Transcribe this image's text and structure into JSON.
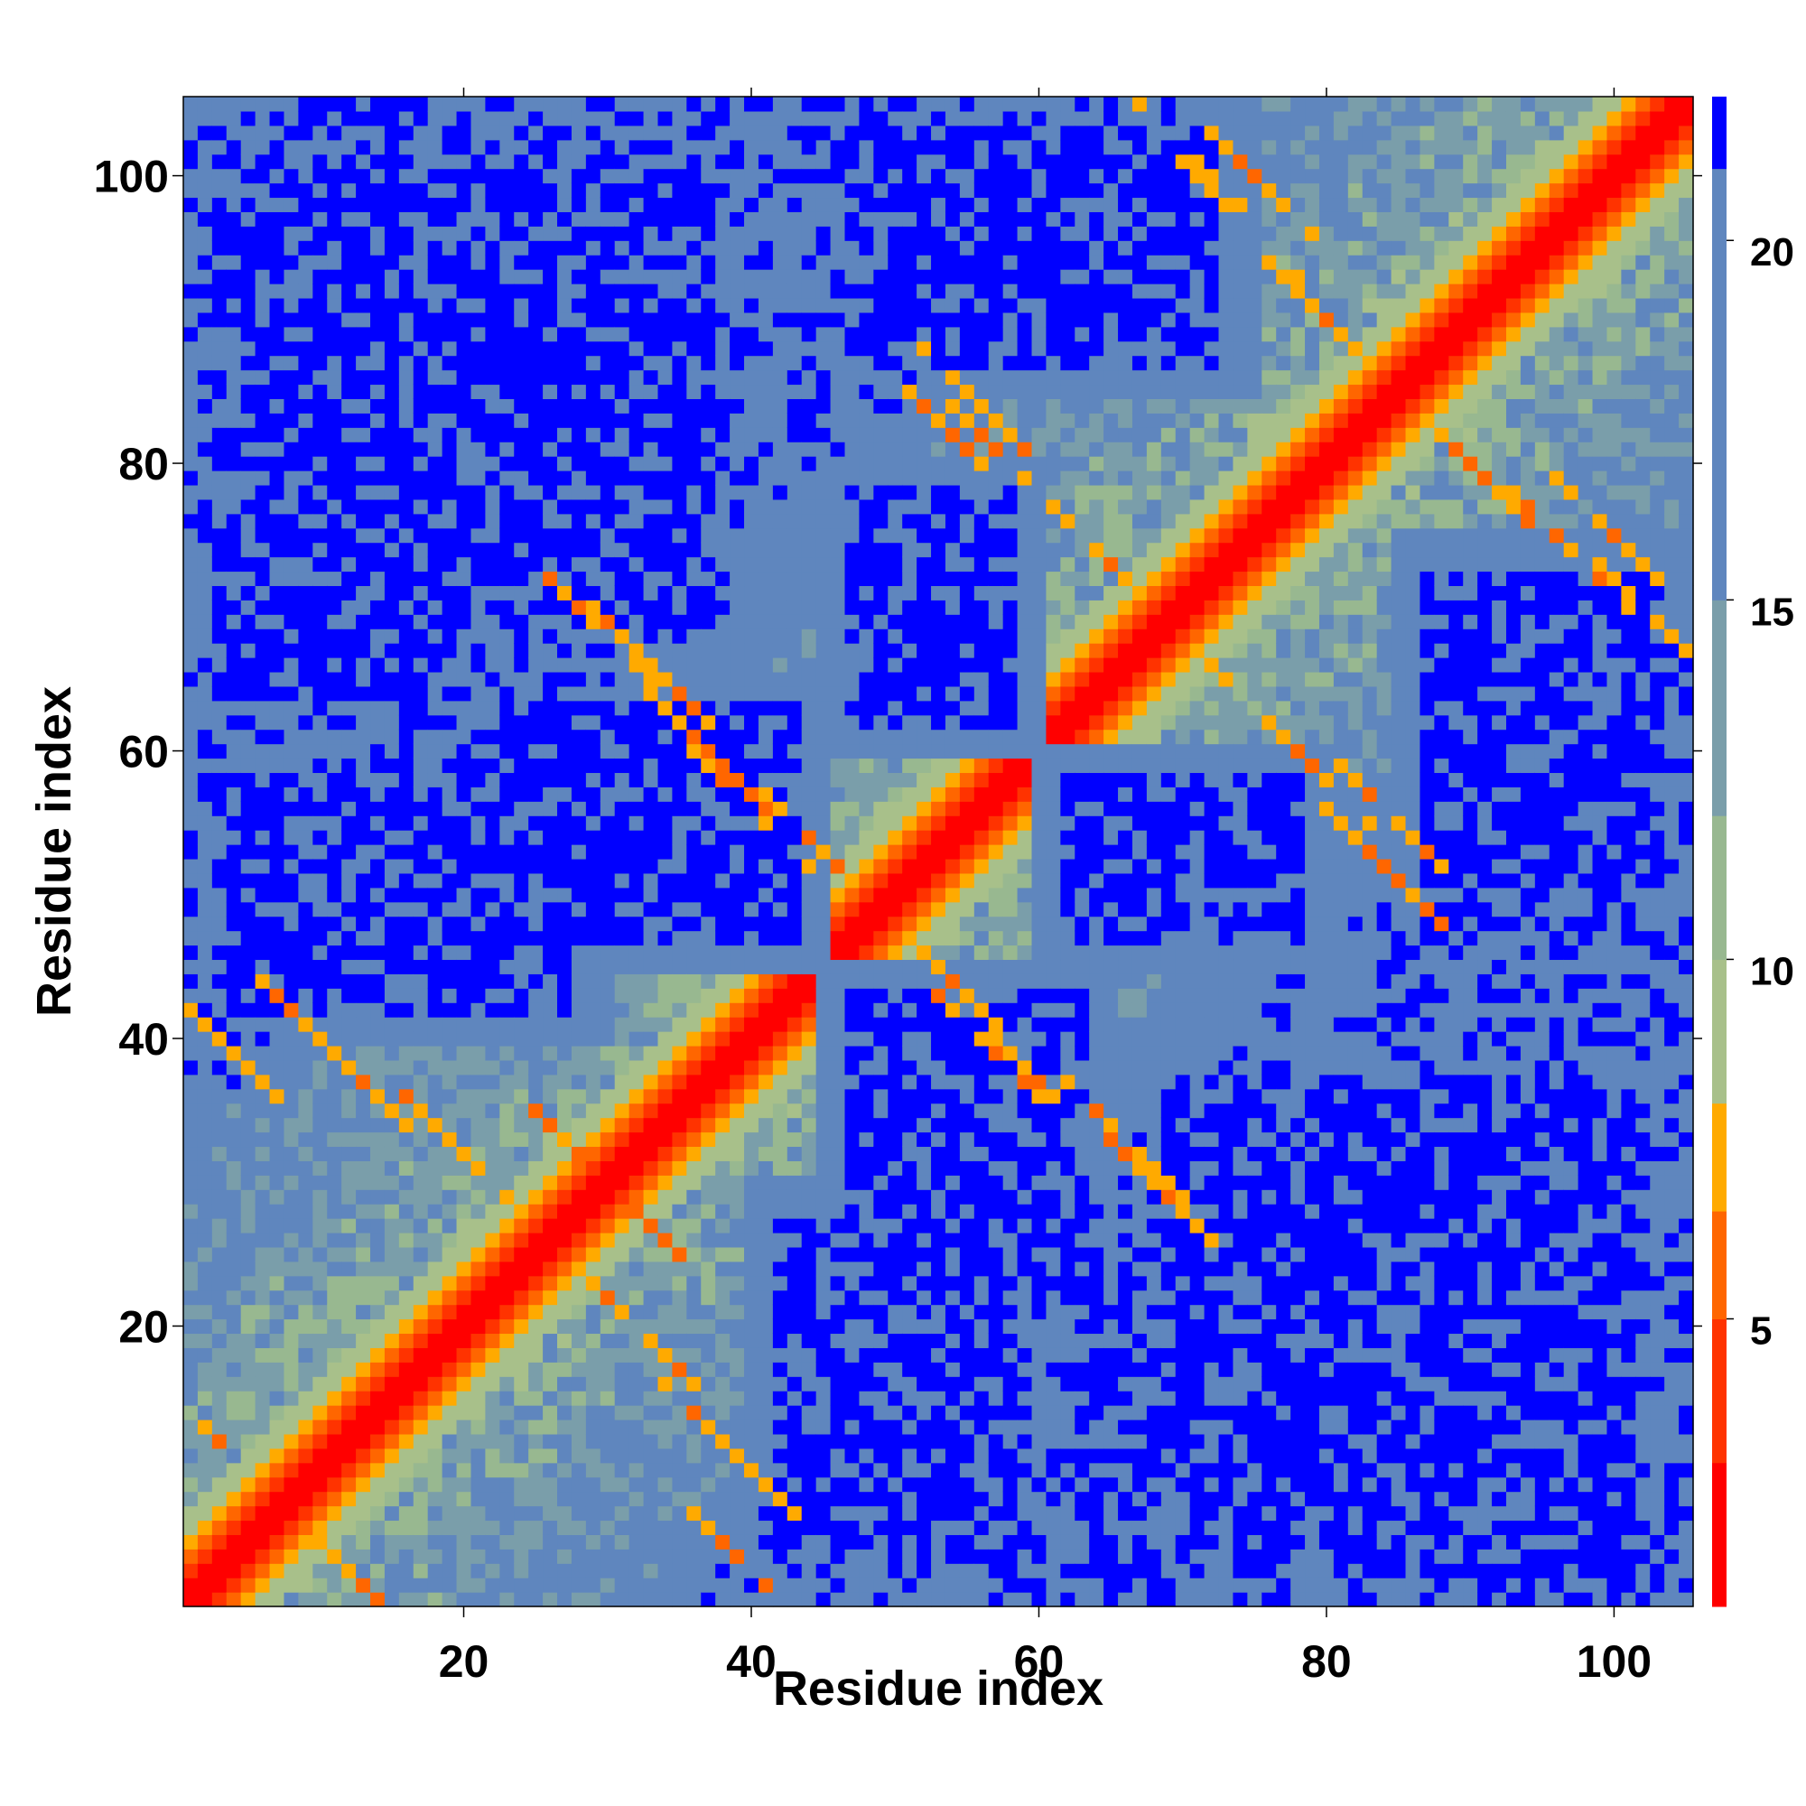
{
  "chart_data": {
    "type": "heatmap",
    "title": "",
    "xlabel": "Residue index",
    "ylabel": "Residue index",
    "n_residues": 105,
    "xlim": [
      1,
      105
    ],
    "ylim": [
      1,
      105
    ],
    "x_ticks": [
      20,
      40,
      60,
      80,
      100
    ],
    "y_ticks": [
      20,
      40,
      60,
      80,
      100
    ],
    "x_tick_labels": [
      "20",
      "40",
      "60",
      "80",
      "100"
    ],
    "y_tick_labels": [
      "20",
      "40",
      "60",
      "80",
      "100"
    ],
    "colorbar": {
      "range": [
        1,
        22
      ],
      "ticks": [
        5,
        10,
        15,
        20
      ],
      "tick_labels": [
        "5",
        "10",
        "15",
        "20"
      ],
      "stops": [
        {
          "max": 3,
          "color": "#ff0000"
        },
        {
          "max": 5,
          "color": "#ff3300"
        },
        {
          "max": 6.5,
          "color": "#ff6600"
        },
        {
          "max": 8,
          "color": "#ffaa00"
        },
        {
          "max": 10,
          "color": "#a8c08a"
        },
        {
          "max": 12,
          "color": "#98b890"
        },
        {
          "max": 15,
          "color": "#7a9eaa"
        },
        {
          "max": 21,
          "color": "#5f86be"
        },
        {
          "max": 22,
          "color": "#0000ff"
        }
      ]
    },
    "value_description": "pairwise residue distance (Angstrom); >21 shown saturated blue",
    "structure": {
      "diagonal": "values rise from ~1 on the diagonal to ~10 at |i-j|=6",
      "helix_pairs": [
        {
          "i": 3,
          "j": 40,
          "value": 7
        },
        {
          "i": 5,
          "j": 10,
          "value": 6
        },
        {
          "i": 10,
          "j": 40,
          "value": 7
        },
        {
          "i": 12,
          "j": 38,
          "value": 7
        },
        {
          "i": 20,
          "j": 32,
          "value": 7
        },
        {
          "i": 28,
          "j": 32,
          "value": 6
        },
        {
          "i": 30,
          "j": 68,
          "value": 7
        },
        {
          "i": 33,
          "j": 66,
          "value": 7
        },
        {
          "i": 37,
          "j": 60,
          "value": 7
        },
        {
          "i": 40,
          "j": 56,
          "value": 7
        },
        {
          "i": 45,
          "j": 53,
          "value": 7
        },
        {
          "i": 52,
          "j": 84,
          "value": 7
        },
        {
          "i": 58,
          "j": 80,
          "value": 7
        },
        {
          "i": 63,
          "j": 75,
          "value": 7
        },
        {
          "i": 70,
          "j": 102,
          "value": 7
        },
        {
          "i": 74,
          "j": 97,
          "value": 7
        },
        {
          "i": 80,
          "j": 90,
          "value": 7
        },
        {
          "i": 85,
          "j": 55,
          "value": 7
        },
        {
          "i": 90,
          "j": 80,
          "value": 7
        },
        {
          "i": 100,
          "j": 75,
          "value": 7
        }
      ],
      "far_regions": [
        {
          "i_range": [
            1,
            20
          ],
          "j_range": [
            60,
            105
          ]
        },
        {
          "i_range": [
            20,
            45
          ],
          "j_range": [
            45,
            65
          ]
        },
        {
          "i_range": [
            40,
            60
          ],
          "j_range": [
            1,
            30
          ]
        },
        {
          "i_range": [
            60,
            80
          ],
          "j_range": [
            45,
            60
          ]
        },
        {
          "i_range": [
            65,
            105
          ],
          "j_range": [
            1,
            40
          ]
        },
        {
          "i_range": [
            45,
            75
          ],
          "j_range": [
            85,
            105
          ]
        }
      ]
    }
  }
}
